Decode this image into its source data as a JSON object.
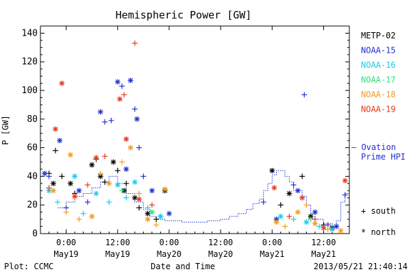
{
  "chart_data": {
    "type": "scatter",
    "title": "Hemispheric Power [GW]",
    "ylabel": "P [GW]",
    "xlabel": "Date and Time",
    "ylim": [
      0,
      145
    ],
    "yticks": [
      0,
      20,
      40,
      60,
      80,
      100,
      120,
      140
    ],
    "xlim_hours": [
      -6,
      66
    ],
    "xticks": [
      {
        "hours": 0,
        "time": "0:00",
        "date": "May19"
      },
      {
        "hours": 12,
        "time": "12:00",
        "date": "May19"
      },
      {
        "hours": 24,
        "time": "0:00",
        "date": "May20"
      },
      {
        "hours": 36,
        "time": "12:00",
        "date": "May20"
      },
      {
        "hours": 48,
        "time": "0:00",
        "date": "May21"
      },
      {
        "hours": 60,
        "time": "12:00",
        "date": "May21"
      }
    ],
    "footer_left": "Plot: CCMC",
    "footer_right": "2013/05/21 21:40:14",
    "legend": {
      "series": [
        {
          "name": "METP-02",
          "color": "#000000"
        },
        {
          "name": "NOAA-15",
          "color": "#1f2fd0"
        },
        {
          "name": "NOAA-16",
          "color": "#1ec8e6"
        },
        {
          "name": "NOAA-17",
          "color": "#2ee07a"
        },
        {
          "name": "NOAA-18",
          "color": "#f59a1a"
        },
        {
          "name": "NOAA-19",
          "color": "#e8341c"
        }
      ],
      "ovation_line1": "— Ovation",
      "ovation_line2": "Prime HPI",
      "south_label": "+ south",
      "north_label": "* north"
    },
    "ovation": {
      "color": "#1f2fd0",
      "points": [
        [
          -2,
          18
        ],
        [
          0,
          18
        ],
        [
          0,
          22
        ],
        [
          2,
          22
        ],
        [
          2,
          26
        ],
        [
          4,
          26
        ],
        [
          4,
          28
        ],
        [
          6,
          28
        ],
        [
          6,
          32
        ],
        [
          8,
          32
        ],
        [
          8,
          36
        ],
        [
          10,
          36
        ],
        [
          10,
          40
        ],
        [
          12,
          40
        ],
        [
          12,
          35
        ],
        [
          14,
          35
        ],
        [
          14,
          28
        ],
        [
          16,
          28
        ],
        [
          16,
          22
        ],
        [
          18,
          22
        ],
        [
          18,
          17
        ],
        [
          19.5,
          17
        ],
        [
          19.5,
          12
        ],
        [
          21,
          12
        ],
        [
          21,
          10
        ],
        [
          23,
          10
        ],
        [
          23,
          9
        ],
        [
          27,
          9
        ],
        [
          27,
          8
        ],
        [
          33,
          8
        ],
        [
          33,
          9
        ],
        [
          36,
          9
        ],
        [
          36,
          10
        ],
        [
          38,
          10
        ],
        [
          38,
          12
        ],
        [
          40,
          12
        ],
        [
          40,
          14
        ],
        [
          42,
          14
        ],
        [
          42,
          17
        ],
        [
          43.5,
          17
        ],
        [
          43.5,
          21
        ],
        [
          45,
          21
        ],
        [
          45,
          24
        ],
        [
          46,
          24
        ],
        [
          46,
          30
        ],
        [
          47,
          30
        ],
        [
          47,
          35
        ],
        [
          48,
          35
        ],
        [
          48,
          41
        ],
        [
          49,
          41
        ],
        [
          49,
          44
        ],
        [
          51,
          44
        ],
        [
          51,
          40
        ],
        [
          52,
          40
        ],
        [
          52,
          36
        ],
        [
          53,
          36
        ],
        [
          53,
          30
        ],
        [
          55,
          30
        ],
        [
          55,
          26
        ],
        [
          56,
          26
        ],
        [
          56,
          20
        ],
        [
          57,
          20
        ],
        [
          57,
          14
        ],
        [
          58,
          14
        ],
        [
          58,
          10
        ],
        [
          60,
          10
        ],
        [
          60,
          7
        ],
        [
          62,
          7
        ],
        [
          62,
          5
        ],
        [
          63,
          5
        ],
        [
          63,
          9
        ],
        [
          64,
          9
        ],
        [
          64,
          22
        ],
        [
          65,
          22
        ],
        [
          65,
          28
        ],
        [
          66,
          28
        ]
      ]
    },
    "scatter": [
      {
        "series": "METP-02",
        "hemi": "south",
        "x": -4,
        "y": 42
      },
      {
        "series": "METP-02",
        "hemi": "north",
        "x": -3,
        "y": 35
      },
      {
        "series": "METP-02",
        "hemi": "south",
        "x": -2.5,
        "y": 58
      },
      {
        "series": "METP-02",
        "hemi": "south",
        "x": -1,
        "y": 40
      },
      {
        "series": "METP-02",
        "hemi": "north",
        "x": 1,
        "y": 35
      },
      {
        "series": "METP-02",
        "hemi": "south",
        "x": 2,
        "y": 28
      },
      {
        "series": "METP-02",
        "hemi": "north",
        "x": 6,
        "y": 48
      },
      {
        "series": "METP-02",
        "hemi": "south",
        "x": 7,
        "y": 52
      },
      {
        "series": "METP-02",
        "hemi": "north",
        "x": 8,
        "y": 40
      },
      {
        "series": "METP-02",
        "hemi": "south",
        "x": 9,
        "y": 36
      },
      {
        "series": "METP-02",
        "hemi": "north",
        "x": 11,
        "y": 50
      },
      {
        "series": "METP-02",
        "hemi": "south",
        "x": 12,
        "y": 44
      },
      {
        "series": "METP-02",
        "hemi": "north",
        "x": 13.5,
        "y": 30
      },
      {
        "series": "METP-02",
        "hemi": "south",
        "x": 14,
        "y": 35
      },
      {
        "series": "METP-02",
        "hemi": "north",
        "x": 16,
        "y": 25
      },
      {
        "series": "METP-02",
        "hemi": "south",
        "x": 17,
        "y": 18
      },
      {
        "series": "METP-02",
        "hemi": "north",
        "x": 19,
        "y": 14
      },
      {
        "series": "METP-02",
        "hemi": "south",
        "x": 21,
        "y": 10
      },
      {
        "series": "METP-02",
        "hemi": "north",
        "x": 23,
        "y": 30
      },
      {
        "series": "METP-02",
        "hemi": "north",
        "x": 48,
        "y": 44
      },
      {
        "series": "METP-02",
        "hemi": "south",
        "x": 50,
        "y": 20
      },
      {
        "series": "METP-02",
        "hemi": "north",
        "x": 52,
        "y": 28
      },
      {
        "series": "METP-02",
        "hemi": "south",
        "x": 55,
        "y": 40
      },
      {
        "series": "METP-02",
        "hemi": "north",
        "x": 57,
        "y": 12
      },
      {
        "series": "METP-02",
        "hemi": "south",
        "x": 60,
        "y": 6
      },
      {
        "series": "METP-02",
        "hemi": "north",
        "x": 62,
        "y": 4
      },
      {
        "series": "NOAA-15",
        "hemi": "north",
        "x": -5,
        "y": 42
      },
      {
        "series": "NOAA-15",
        "hemi": "south",
        "x": -4,
        "y": 40
      },
      {
        "series": "NOAA-15",
        "hemi": "north",
        "x": -1.5,
        "y": 65
      },
      {
        "series": "NOAA-15",
        "hemi": "south",
        "x": 0,
        "y": 18
      },
      {
        "series": "NOAA-15",
        "hemi": "north",
        "x": 3,
        "y": 30
      },
      {
        "series": "NOAA-15",
        "hemi": "south",
        "x": 5,
        "y": 22
      },
      {
        "series": "NOAA-15",
        "hemi": "north",
        "x": 8,
        "y": 85
      },
      {
        "series": "NOAA-15",
        "hemi": "south",
        "x": 9,
        "y": 78
      },
      {
        "series": "NOAA-15",
        "hemi": "south",
        "x": 10.5,
        "y": 79
      },
      {
        "series": "NOAA-15",
        "hemi": "north",
        "x": 12,
        "y": 106
      },
      {
        "series": "NOAA-15",
        "hemi": "south",
        "x": 13,
        "y": 103
      },
      {
        "series": "NOAA-15",
        "hemi": "north",
        "x": 15,
        "y": 107
      },
      {
        "series": "NOAA-15",
        "hemi": "south",
        "x": 16,
        "y": 87
      },
      {
        "series": "NOAA-15",
        "hemi": "north",
        "x": 16.5,
        "y": 80
      },
      {
        "series": "NOAA-15",
        "hemi": "south",
        "x": 17,
        "y": 60
      },
      {
        "series": "NOAA-15",
        "hemi": "north",
        "x": 14,
        "y": 45
      },
      {
        "series": "NOAA-15",
        "hemi": "south",
        "x": 18,
        "y": 40
      },
      {
        "series": "NOAA-15",
        "hemi": "north",
        "x": 20,
        "y": 30
      },
      {
        "series": "NOAA-15",
        "hemi": "south",
        "x": 22,
        "y": 12
      },
      {
        "series": "NOAA-15",
        "hemi": "north",
        "x": 24,
        "y": 14
      },
      {
        "series": "NOAA-15",
        "hemi": "south",
        "x": 46,
        "y": 22
      },
      {
        "series": "NOAA-15",
        "hemi": "north",
        "x": 49,
        "y": 10
      },
      {
        "series": "NOAA-15",
        "hemi": "south",
        "x": 53,
        "y": 34
      },
      {
        "series": "NOAA-15",
        "hemi": "north",
        "x": 54,
        "y": 30
      },
      {
        "series": "NOAA-15",
        "hemi": "south",
        "x": 55.5,
        "y": 97
      },
      {
        "series": "NOAA-15",
        "hemi": "north",
        "x": 58,
        "y": 15
      },
      {
        "series": "NOAA-15",
        "hemi": "south",
        "x": 61,
        "y": 6
      },
      {
        "series": "NOAA-15",
        "hemi": "north",
        "x": 63,
        "y": 5
      },
      {
        "series": "NOAA-15",
        "hemi": "south",
        "x": 65,
        "y": 27
      },
      {
        "series": "NOAA-16",
        "hemi": "north",
        "x": -4,
        "y": 30
      },
      {
        "series": "NOAA-16",
        "hemi": "south",
        "x": -2,
        "y": 22
      },
      {
        "series": "NOAA-16",
        "hemi": "north",
        "x": 2,
        "y": 40
      },
      {
        "series": "NOAA-16",
        "hemi": "south",
        "x": 4,
        "y": 14
      },
      {
        "series": "NOAA-16",
        "hemi": "north",
        "x": 7,
        "y": 28
      },
      {
        "series": "NOAA-16",
        "hemi": "south",
        "x": 10,
        "y": 22
      },
      {
        "series": "NOAA-16",
        "hemi": "north",
        "x": 12,
        "y": 34
      },
      {
        "series": "NOAA-16",
        "hemi": "south",
        "x": 14,
        "y": 25
      },
      {
        "series": "NOAA-16",
        "hemi": "north",
        "x": 16,
        "y": 36
      },
      {
        "series": "NOAA-16",
        "hemi": "south",
        "x": 19,
        "y": 18
      },
      {
        "series": "NOAA-16",
        "hemi": "north",
        "x": 22,
        "y": 12
      },
      {
        "series": "NOAA-16",
        "hemi": "north",
        "x": 50,
        "y": 12
      },
      {
        "series": "NOAA-16",
        "hemi": "south",
        "x": 53,
        "y": 10
      },
      {
        "series": "NOAA-16",
        "hemi": "north",
        "x": 56,
        "y": 8
      },
      {
        "series": "NOAA-16",
        "hemi": "south",
        "x": 59,
        "y": 5
      },
      {
        "series": "NOAA-16",
        "hemi": "north",
        "x": 62,
        "y": 3
      },
      {
        "series": "NOAA-17",
        "hemi": "south",
        "x": 13,
        "y": 30
      },
      {
        "series": "NOAA-17",
        "hemi": "north",
        "x": 20,
        "y": 15
      },
      {
        "series": "NOAA-17",
        "hemi": "south",
        "x": 57,
        "y": 10
      },
      {
        "series": "NOAA-18",
        "hemi": "north",
        "x": -3,
        "y": 30
      },
      {
        "series": "NOAA-18",
        "hemi": "south",
        "x": 0,
        "y": 15
      },
      {
        "series": "NOAA-18",
        "hemi": "north",
        "x": 1,
        "y": 55
      },
      {
        "series": "NOAA-18",
        "hemi": "south",
        "x": 3,
        "y": 10
      },
      {
        "series": "NOAA-18",
        "hemi": "north",
        "x": 6,
        "y": 12
      },
      {
        "series": "NOAA-18",
        "hemi": "south",
        "x": 8,
        "y": 42
      },
      {
        "series": "NOAA-18",
        "hemi": "north",
        "x": 10,
        "y": 35
      },
      {
        "series": "NOAA-18",
        "hemi": "south",
        "x": 13,
        "y": 50
      },
      {
        "series": "NOAA-18",
        "hemi": "north",
        "x": 15,
        "y": 60
      },
      {
        "series": "NOAA-18",
        "hemi": "south",
        "x": 17,
        "y": 28
      },
      {
        "series": "NOAA-18",
        "hemi": "north",
        "x": 19,
        "y": 10
      },
      {
        "series": "NOAA-18",
        "hemi": "south",
        "x": 21,
        "y": 6
      },
      {
        "series": "NOAA-18",
        "hemi": "north",
        "x": 23,
        "y": 31
      },
      {
        "series": "NOAA-18",
        "hemi": "north",
        "x": 49,
        "y": 8
      },
      {
        "series": "NOAA-18",
        "hemi": "south",
        "x": 51,
        "y": 5
      },
      {
        "series": "NOAA-18",
        "hemi": "north",
        "x": 54,
        "y": 15
      },
      {
        "series": "NOAA-18",
        "hemi": "south",
        "x": 56,
        "y": 20
      },
      {
        "series": "NOAA-18",
        "hemi": "north",
        "x": 58,
        "y": 7
      },
      {
        "series": "NOAA-18",
        "hemi": "south",
        "x": 61,
        "y": 3
      },
      {
        "series": "NOAA-18",
        "hemi": "north",
        "x": 64,
        "y": 2
      },
      {
        "series": "NOAA-19",
        "hemi": "north",
        "x": -2.5,
        "y": 73
      },
      {
        "series": "NOAA-19",
        "hemi": "north",
        "x": -1,
        "y": 105
      },
      {
        "series": "NOAA-19",
        "hemi": "south",
        "x": -4,
        "y": 32
      },
      {
        "series": "NOAA-19",
        "hemi": "north",
        "x": 2,
        "y": 26
      },
      {
        "series": "NOAA-19",
        "hemi": "south",
        "x": 5,
        "y": 34
      },
      {
        "series": "NOAA-19",
        "hemi": "north",
        "x": 7,
        "y": 53
      },
      {
        "series": "NOAA-19",
        "hemi": "south",
        "x": 9,
        "y": 54
      },
      {
        "series": "NOAA-19",
        "hemi": "north",
        "x": 12.5,
        "y": 94
      },
      {
        "series": "NOAA-19",
        "hemi": "south",
        "x": 13.5,
        "y": 97
      },
      {
        "series": "NOAA-19",
        "hemi": "north",
        "x": 14,
        "y": 66
      },
      {
        "series": "NOAA-19",
        "hemi": "south",
        "x": 16,
        "y": 133
      },
      {
        "series": "NOAA-19",
        "hemi": "north",
        "x": 17,
        "y": 24
      },
      {
        "series": "NOAA-19",
        "hemi": "south",
        "x": 20,
        "y": 20
      },
      {
        "series": "NOAA-19",
        "hemi": "north",
        "x": 48.5,
        "y": 32
      },
      {
        "series": "NOAA-19",
        "hemi": "south",
        "x": 52,
        "y": 12
      },
      {
        "series": "NOAA-19",
        "hemi": "north",
        "x": 55,
        "y": 25
      },
      {
        "series": "NOAA-19",
        "hemi": "south",
        "x": 58,
        "y": 10
      },
      {
        "series": "NOAA-19",
        "hemi": "north",
        "x": 60,
        "y": 4
      },
      {
        "series": "NOAA-19",
        "hemi": "north",
        "x": 65,
        "y": 37
      }
    ]
  }
}
